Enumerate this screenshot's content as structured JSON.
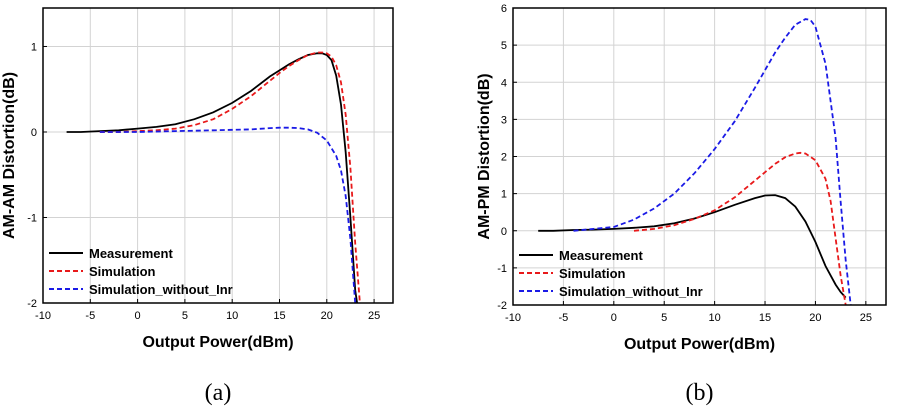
{
  "chart_data": [
    {
      "type": "line",
      "panel_label": "(a)",
      "xlabel": "Output Power(dBm)",
      "ylabel": "AM-AM Distortion(dB)",
      "xlim": [
        -10,
        27
      ],
      "ylim": [
        -2,
        1.45
      ],
      "xticks": [
        -10,
        -5,
        0,
        5,
        10,
        15,
        20,
        25
      ],
      "xtick_labels": [
        "-10",
        "-5",
        "0",
        "5",
        "10",
        "15",
        "20",
        "25"
      ],
      "yticks": [
        -2,
        -1,
        0,
        1
      ],
      "ytick_labels": [
        "-2",
        "-1",
        "0",
        "1"
      ],
      "grid": true,
      "legend_position": "bottom-left",
      "series": [
        {
          "name": "Measurement",
          "color": "#000000",
          "style": "solid",
          "x": [
            -7.5,
            -6,
            -4,
            -2,
            0,
            2,
            4,
            6,
            8,
            10,
            12,
            14,
            15,
            16,
            17,
            18,
            19,
            19.5,
            20,
            20.5,
            21,
            21.5,
            22,
            22.5,
            23,
            23.2
          ],
          "y": [
            0.0,
            0.0,
            0.01,
            0.02,
            0.04,
            0.06,
            0.09,
            0.15,
            0.23,
            0.34,
            0.48,
            0.65,
            0.72,
            0.79,
            0.85,
            0.9,
            0.92,
            0.92,
            0.9,
            0.84,
            0.66,
            0.32,
            -0.24,
            -1.0,
            -1.85,
            -2.0
          ]
        },
        {
          "name": "Simulation",
          "color": "#e8191a",
          "style": "dashed",
          "x": [
            -4,
            -2,
            0,
            2,
            4,
            6,
            8,
            10,
            12,
            14,
            15,
            16,
            17,
            18,
            19,
            19.5,
            20,
            20.5,
            21,
            21.5,
            22,
            22.5,
            23,
            23.5
          ],
          "y": [
            0.0,
            0.0,
            0.01,
            0.02,
            0.04,
            0.08,
            0.15,
            0.27,
            0.42,
            0.6,
            0.69,
            0.77,
            0.84,
            0.9,
            0.93,
            0.93,
            0.92,
            0.88,
            0.78,
            0.58,
            0.2,
            -0.42,
            -1.3,
            -2.0
          ]
        },
        {
          "name": "Simulation_without_Inr",
          "color": "#1a1ae6",
          "style": "dashed",
          "x": [
            -4,
            0,
            4,
            8,
            12,
            14,
            15,
            16,
            17,
            18,
            19,
            20,
            21,
            21.5,
            22,
            22.5,
            23
          ],
          "y": [
            0.0,
            0.0,
            0.01,
            0.02,
            0.03,
            0.045,
            0.05,
            0.05,
            0.045,
            0.03,
            -0.01,
            -0.1,
            -0.28,
            -0.45,
            -0.75,
            -1.25,
            -2.0
          ]
        }
      ]
    },
    {
      "type": "line",
      "panel_label": "(b)",
      "xlabel": "Output Power(dBm)",
      "ylabel": "AM-PM Distortion(dB)",
      "xlim": [
        -10,
        27
      ],
      "ylim": [
        -2,
        6
      ],
      "xticks": [
        -10,
        -5,
        0,
        5,
        10,
        15,
        20,
        25
      ],
      "xtick_labels": [
        "-10",
        "-5",
        "0",
        "5",
        "10",
        "15",
        "20",
        "25"
      ],
      "yticks": [
        -2,
        -1,
        0,
        1,
        2,
        3,
        4,
        5,
        6
      ],
      "ytick_labels": [
        "-2",
        "-1",
        "0",
        "1",
        "2",
        "3",
        "4",
        "5",
        "6"
      ],
      "grid": true,
      "legend_position": "bottom-left",
      "series": [
        {
          "name": "Measurement",
          "color": "#000000",
          "style": "solid",
          "x": [
            -7.5,
            -6,
            -4,
            -2,
            0,
            2,
            4,
            6,
            8,
            10,
            12,
            14,
            15,
            16,
            17,
            18,
            19,
            20,
            21,
            22,
            22.5,
            23
          ],
          "y": [
            0.0,
            0.0,
            0.02,
            0.03,
            0.05,
            0.08,
            0.12,
            0.2,
            0.33,
            0.5,
            0.7,
            0.88,
            0.95,
            0.96,
            0.88,
            0.65,
            0.25,
            -0.3,
            -0.95,
            -1.45,
            -1.65,
            -1.8
          ]
        },
        {
          "name": "Simulation",
          "color": "#e8191a",
          "style": "dashed",
          "x": [
            2,
            4,
            6,
            8,
            10,
            12,
            14,
            16,
            17,
            18,
            18.5,
            19,
            20,
            21,
            21.5,
            22,
            22.5,
            23
          ],
          "y": [
            0.0,
            0.05,
            0.15,
            0.32,
            0.55,
            0.9,
            1.35,
            1.8,
            1.98,
            2.08,
            2.1,
            2.08,
            1.9,
            1.4,
            0.8,
            -0.2,
            -1.2,
            -2.0
          ]
        },
        {
          "name": "Simulation_without_Inr",
          "color": "#1a1ae6",
          "style": "dashed",
          "x": [
            -4,
            -2,
            0,
            2,
            4,
            6,
            8,
            10,
            12,
            14,
            16,
            17,
            18,
            19,
            19.5,
            20,
            21,
            22,
            22.5,
            23,
            23.5
          ],
          "y": [
            0.0,
            0.05,
            0.1,
            0.3,
            0.6,
            1.0,
            1.55,
            2.2,
            2.95,
            3.85,
            4.8,
            5.2,
            5.55,
            5.7,
            5.68,
            5.5,
            4.5,
            2.5,
            0.8,
            -0.8,
            -2.0
          ]
        }
      ]
    }
  ]
}
